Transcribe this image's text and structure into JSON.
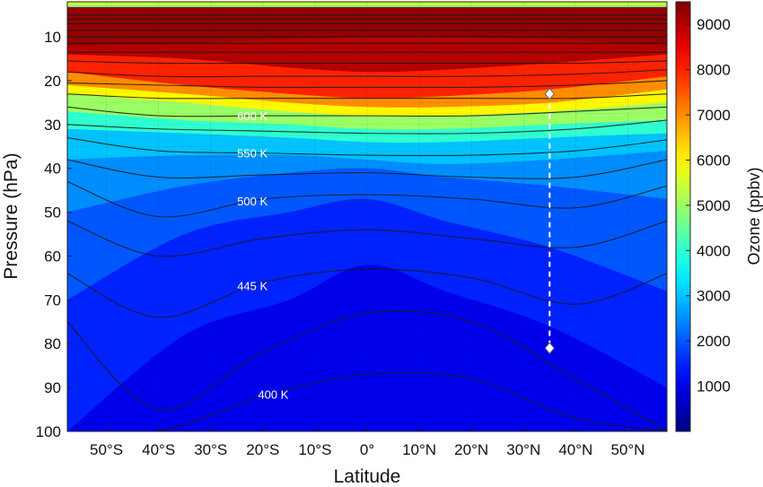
{
  "chart_data": {
    "type": "heatmap",
    "title": "",
    "xlabel": "Latitude",
    "ylabel": "Pressure (hPa)",
    "colorbar_label": "Ozone (ppbv)",
    "xlim": [
      -57.5,
      57.5
    ],
    "ylim": [
      100,
      2
    ],
    "x_ticks": [
      {
        "value": -50,
        "label": "50°S"
      },
      {
        "value": -40,
        "label": "40°S"
      },
      {
        "value": -30,
        "label": "30°S"
      },
      {
        "value": -20,
        "label": "20°S"
      },
      {
        "value": -10,
        "label": "10°S"
      },
      {
        "value": 0,
        "label": "0°"
      },
      {
        "value": 10,
        "label": "10°N"
      },
      {
        "value": 20,
        "label": "20°N"
      },
      {
        "value": 30,
        "label": "30°N"
      },
      {
        "value": 40,
        "label": "40°N"
      },
      {
        "value": 50,
        "label": "50°N"
      }
    ],
    "y_ticks": [
      {
        "value": 10,
        "label": "10"
      },
      {
        "value": 20,
        "label": "20"
      },
      {
        "value": 30,
        "label": "30"
      },
      {
        "value": 40,
        "label": "40"
      },
      {
        "value": 50,
        "label": "50"
      },
      {
        "value": 60,
        "label": "60"
      },
      {
        "value": 70,
        "label": "70"
      },
      {
        "value": 80,
        "label": "80"
      },
      {
        "value": 90,
        "label": "90"
      },
      {
        "value": 100,
        "label": "100"
      }
    ],
    "colorbar": {
      "range": [
        0,
        9500
      ],
      "ticks": [
        {
          "value": 1000,
          "label": "1000"
        },
        {
          "value": 2000,
          "label": "2000"
        },
        {
          "value": 3000,
          "label": "3000"
        },
        {
          "value": 4000,
          "label": "4000"
        },
        {
          "value": 5000,
          "label": "5000"
        },
        {
          "value": 6000,
          "label": "6000"
        },
        {
          "value": 7000,
          "label": "7000"
        },
        {
          "value": 8000,
          "label": "8000"
        },
        {
          "value": 9000,
          "label": "9000"
        }
      ],
      "colormap": "jet"
    },
    "ozone_levels": [
      {
        "ozone": 9000,
        "p": [
          12,
          11.5,
          10.5,
          10,
          10,
          10.5,
          12
        ]
      },
      {
        "ozone": 8000,
        "p": [
          14,
          15,
          17,
          18,
          17.5,
          16,
          14
        ]
      },
      {
        "ozone": 7000,
        "p": [
          18,
          21,
          23,
          24,
          23.5,
          22,
          19
        ]
      },
      {
        "ozone": 6000,
        "p": [
          21,
          23,
          25,
          26,
          26,
          25,
          22
        ]
      },
      {
        "ozone": 5000,
        "p": [
          23,
          25,
          27,
          28,
          28,
          27,
          25
        ]
      },
      {
        "ozone": 4000,
        "p": [
          27,
          29,
          30,
          31,
          31,
          30,
          29
        ]
      },
      {
        "ozone": 3000,
        "p": [
          31,
          32,
          33,
          34,
          34,
          33,
          32
        ]
      },
      {
        "ozone": 2500,
        "p": [
          38,
          37,
          37,
          38,
          39,
          38,
          36
        ]
      },
      {
        "ozone": 2000,
        "p": [
          50,
          44,
          41,
          40,
          42,
          44,
          47
        ]
      },
      {
        "ozone": 1500,
        "p": [
          70,
          55,
          50,
          47,
          52,
          58,
          68
        ]
      },
      {
        "ozone": 1000,
        "p": [
          100,
          78,
          70,
          62,
          68,
          76,
          90
        ]
      }
    ],
    "ozone_lats": [
      -57.5,
      -35,
      -15,
      0,
      15,
      35,
      57.5
    ],
    "isentropes": [
      {
        "label": "",
        "p": [
          5,
          5,
          5,
          5,
          5,
          5,
          5
        ]
      },
      {
        "label": "",
        "p": [
          6,
          6,
          6,
          6,
          6,
          6,
          6
        ]
      },
      {
        "label": "",
        "p": [
          7,
          7,
          7,
          7,
          7,
          7,
          7
        ]
      },
      {
        "label": "",
        "p": [
          8.5,
          8.5,
          8.5,
          8.5,
          8.5,
          8.5,
          8.5
        ]
      },
      {
        "label": "",
        "p": [
          10,
          10,
          10,
          10,
          10,
          10,
          10
        ]
      },
      {
        "label": "",
        "p": [
          11.5,
          11.5,
          11.5,
          11.5,
          11.5,
          11.5,
          11.5
        ]
      },
      {
        "label": "",
        "p": [
          13.5,
          13.5,
          13.5,
          13.5,
          13.5,
          13.5,
          13.5
        ]
      },
      {
        "label": "",
        "p": [
          15.5,
          16,
          16,
          16,
          16,
          16,
          15.5
        ]
      },
      {
        "label": "",
        "p": [
          18,
          19,
          19,
          19,
          19,
          18.5,
          17.5
        ]
      },
      {
        "label": "",
        "p": [
          20.5,
          21,
          21.5,
          21.5,
          21.5,
          21,
          20
        ]
      },
      {
        "label": "",
        "p": [
          23,
          24,
          24,
          24,
          24,
          24,
          23
        ]
      },
      {
        "label": "600 K",
        "p": [
          26,
          28,
          28,
          28,
          28,
          27,
          26
        ]
      },
      {
        "label": "",
        "p": [
          30,
          31,
          31.5,
          32,
          32,
          31,
          29
        ]
      },
      {
        "label": "550 K",
        "p": [
          33,
          36,
          36.5,
          37,
          37,
          36,
          33.5
        ]
      },
      {
        "label": "",
        "p": [
          38,
          42,
          41.5,
          41,
          42,
          42,
          38
        ]
      },
      {
        "label": "500 K",
        "p": [
          43,
          51,
          47,
          46,
          47,
          49,
          44
        ]
      },
      {
        "label": "",
        "p": [
          52,
          60,
          56,
          54,
          56,
          58,
          52
        ]
      },
      {
        "label": "445 K",
        "p": [
          64,
          74,
          66,
          63,
          65,
          71,
          64
        ]
      },
      {
        "label": "",
        "p": [
          75,
          95,
          82,
          73,
          75,
          88,
          100
        ]
      },
      {
        "label": "400 K",
        "p": [
          100,
          100,
          92,
          87,
          88,
          97,
          100
        ]
      }
    ],
    "isentrope_lats": [
      -57.5,
      -40,
      -20,
      0,
      20,
      40,
      57.5
    ],
    "contour_label_positions": [
      {
        "label": "600 K",
        "lat": -22
      },
      {
        "label": "550 K",
        "lat": -22
      },
      {
        "label": "500 K",
        "lat": -22
      },
      {
        "label": "445 K",
        "lat": -22
      },
      {
        "label": "400 K",
        "lat": -18
      }
    ],
    "profile_marker": {
      "lat": 35,
      "p_top": 23,
      "p_bottom": 81
    }
  }
}
